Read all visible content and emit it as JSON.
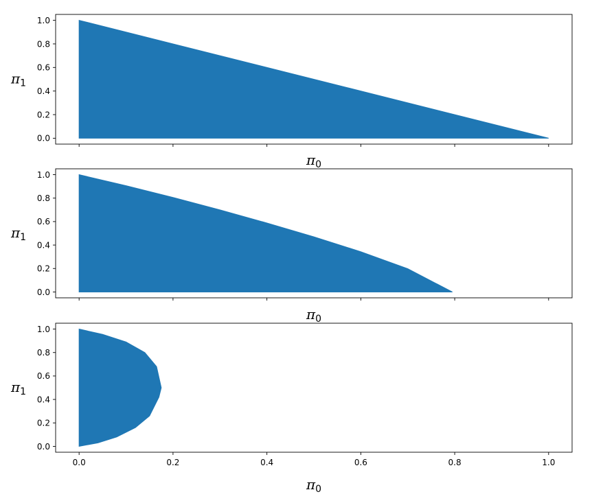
{
  "chart_data": [
    {
      "type": "area",
      "title": "",
      "xlabel": "π0",
      "ylabel": "π1",
      "xlim": [
        -0.05,
        1.05
      ],
      "ylim": [
        -0.05,
        1.05
      ],
      "xticks": [
        0.0,
        0.2,
        0.4,
        0.6,
        0.8,
        1.0
      ],
      "xtick_labels_shown": false,
      "yticks": [
        0.0,
        0.2,
        0.4,
        0.6,
        0.8,
        1.0
      ],
      "ytick_labels": [
        "0.0",
        "0.2",
        "0.4",
        "0.6",
        "0.8",
        "1.0"
      ],
      "color": "#1f77b4",
      "region_boundary": {
        "x": [
          0.0,
          0.0,
          1.0
        ],
        "y": [
          0.0,
          1.0,
          0.0
        ]
      }
    },
    {
      "type": "area",
      "title": "",
      "xlabel": "π0",
      "ylabel": "π1",
      "xlim": [
        -0.05,
        1.05
      ],
      "ylim": [
        -0.05,
        1.05
      ],
      "xticks": [
        0.0,
        0.2,
        0.4,
        0.6,
        0.8,
        1.0
      ],
      "xtick_labels_shown": false,
      "yticks": [
        0.0,
        0.2,
        0.4,
        0.6,
        0.8,
        1.0
      ],
      "ytick_labels": [
        "0.0",
        "0.2",
        "0.4",
        "0.6",
        "0.8",
        "1.0"
      ],
      "color": "#1f77b4",
      "region_boundary": {
        "x": [
          0.0,
          0.0,
          0.1,
          0.2,
          0.3,
          0.4,
          0.5,
          0.6,
          0.7,
          0.795
        ],
        "y": [
          0.0,
          1.0,
          0.906,
          0.806,
          0.7,
          0.588,
          0.47,
          0.343,
          0.198,
          0.0
        ]
      }
    },
    {
      "type": "area",
      "title": "",
      "xlabel": "π0",
      "ylabel": "π1",
      "xlim": [
        -0.05,
        1.05
      ],
      "ylim": [
        -0.05,
        1.05
      ],
      "xticks": [
        0.0,
        0.2,
        0.4,
        0.6,
        0.8,
        1.0
      ],
      "xtick_labels": [
        "0.0",
        "0.2",
        "0.4",
        "0.6",
        "0.8",
        "1.0"
      ],
      "xtick_labels_shown": true,
      "yticks": [
        0.0,
        0.2,
        0.4,
        0.6,
        0.8,
        1.0
      ],
      "ytick_labels": [
        "0.0",
        "0.2",
        "0.4",
        "0.6",
        "0.8",
        "1.0"
      ],
      "color": "#1f77b4",
      "region_boundary": {
        "x": [
          0.0,
          0.0,
          0.05,
          0.1,
          0.14,
          0.165,
          0.175,
          0.17,
          0.15,
          0.12,
          0.08,
          0.04,
          0.0
        ],
        "y": [
          0.0,
          1.0,
          0.955,
          0.89,
          0.8,
          0.68,
          0.5,
          0.42,
          0.26,
          0.16,
          0.08,
          0.03,
          0.0
        ]
      }
    }
  ]
}
